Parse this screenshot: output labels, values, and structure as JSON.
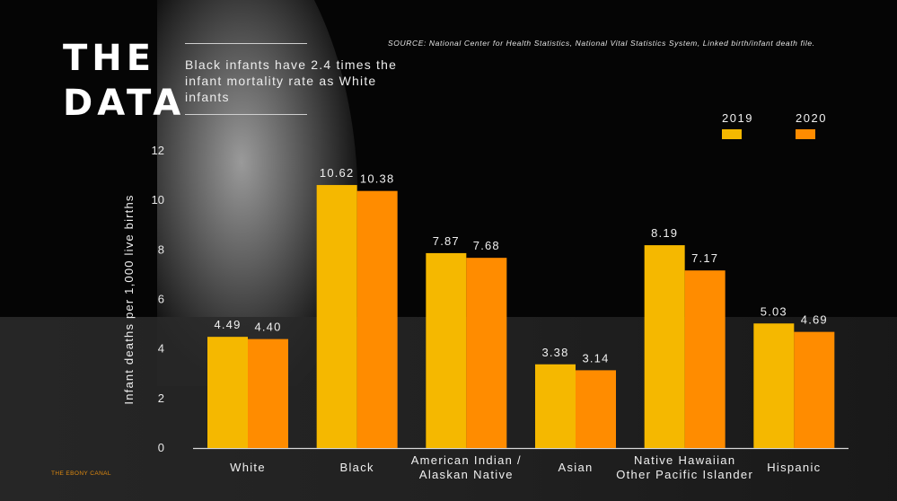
{
  "header": {
    "title_line1": "THE",
    "title_line2": "DATA",
    "subtitle": "Black infants have 2.4 times the infant mortality rate as White infants",
    "source": "SOURCE: National Center for Health Statistics, National Vital Statistics System, Linked birth/infant death file."
  },
  "footer": {
    "brand": "THE EBONY CANAL"
  },
  "colors": {
    "series_2019": "#f5b800",
    "series_2020": "#ff8c00",
    "background": "#050505"
  },
  "chart_data": {
    "type": "bar",
    "title": "",
    "xlabel": "",
    "ylabel": "Infant deaths per 1,000 live births",
    "ylim": [
      0,
      12
    ],
    "yticks": [
      0,
      2,
      4,
      6,
      8,
      10,
      12
    ],
    "grid": false,
    "legend_position": "top-right",
    "categories": [
      [
        "White"
      ],
      [
        "Black"
      ],
      [
        "American Indian /",
        "Alaskan Native"
      ],
      [
        "Asian"
      ],
      [
        "Native Hawaiian",
        "Other Pacific Islander"
      ],
      [
        "Hispanic"
      ]
    ],
    "series": [
      {
        "name": "2019",
        "color": "#f5b800",
        "values": [
          4.49,
          10.62,
          7.87,
          3.38,
          8.19,
          5.03
        ],
        "labels": [
          "4.49",
          "10.62",
          "7.87",
          "3.38",
          "8.19",
          "5.03"
        ]
      },
      {
        "name": "2020",
        "color": "#ff8c00",
        "values": [
          4.4,
          10.38,
          7.68,
          3.14,
          7.17,
          4.69
        ],
        "labels": [
          "4.40",
          "10.38",
          "7.68",
          "3.14",
          "7.17",
          "4.69"
        ]
      }
    ]
  }
}
